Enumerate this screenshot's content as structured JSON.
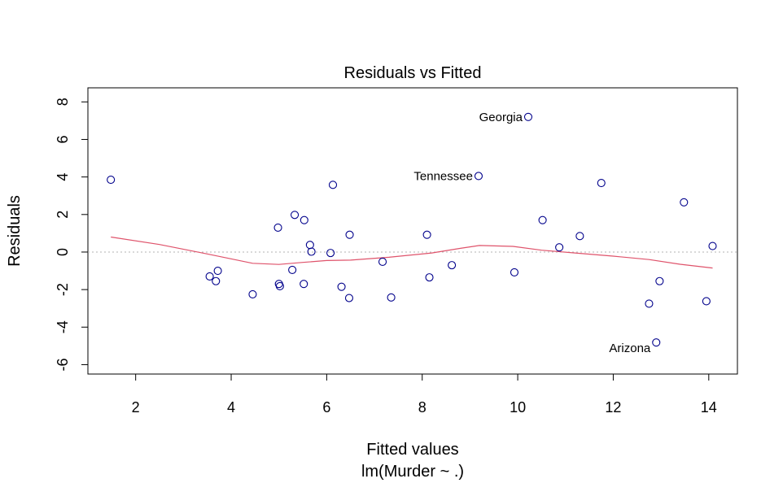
{
  "chart_data": {
    "type": "scatter",
    "title": "Residuals vs Fitted",
    "xlabel": "Fitted values",
    "subtitle": "lm(Murder ~ .)",
    "ylabel": "Residuals",
    "xlim": [
      1.0,
      14.6
    ],
    "ylim": [
      -6.5,
      8.75
    ],
    "xticks": [
      2,
      4,
      6,
      8,
      10,
      12,
      14
    ],
    "yticks": [
      -6,
      -4,
      -2,
      0,
      2,
      4,
      6,
      8
    ],
    "grid": false,
    "zero_line": {
      "y": 0,
      "style": "dotted",
      "color": "#b3b3b3"
    },
    "point_color": "#00008b",
    "smooth_color": "#df536b",
    "points": [
      {
        "x": 1.48,
        "y": 3.85
      },
      {
        "x": 3.55,
        "y": -1.3
      },
      {
        "x": 3.68,
        "y": -1.55
      },
      {
        "x": 3.72,
        "y": -1.0
      },
      {
        "x": 4.45,
        "y": -2.25
      },
      {
        "x": 4.98,
        "y": 1.3
      },
      {
        "x": 5.0,
        "y": -1.7
      },
      {
        "x": 5.02,
        "y": -1.82
      },
      {
        "x": 5.28,
        "y": -0.95
      },
      {
        "x": 5.33,
        "y": 1.98
      },
      {
        "x": 5.52,
        "y": -1.7
      },
      {
        "x": 5.53,
        "y": 1.7
      },
      {
        "x": 5.65,
        "y": 0.38
      },
      {
        "x": 5.68,
        "y": 0.02
      },
      {
        "x": 6.08,
        "y": -0.05
      },
      {
        "x": 6.13,
        "y": 3.58
      },
      {
        "x": 6.31,
        "y": -1.85
      },
      {
        "x": 6.47,
        "y": -2.45
      },
      {
        "x": 6.48,
        "y": 0.92
      },
      {
        "x": 7.17,
        "y": -0.52
      },
      {
        "x": 7.35,
        "y": -2.42
      },
      {
        "x": 8.1,
        "y": 0.92
      },
      {
        "x": 8.15,
        "y": -1.35
      },
      {
        "x": 8.62,
        "y": -0.7
      },
      {
        "x": 9.18,
        "y": 4.05
      },
      {
        "x": 9.93,
        "y": -1.08
      },
      {
        "x": 10.22,
        "y": 7.2
      },
      {
        "x": 10.52,
        "y": 1.7
      },
      {
        "x": 10.87,
        "y": 0.25
      },
      {
        "x": 11.3,
        "y": 0.85
      },
      {
        "x": 11.75,
        "y": 3.68
      },
      {
        "x": 12.75,
        "y": -2.75
      },
      {
        "x": 12.9,
        "y": -4.82
      },
      {
        "x": 12.97,
        "y": -1.55
      },
      {
        "x": 13.48,
        "y": 2.65
      },
      {
        "x": 13.95,
        "y": -2.62
      },
      {
        "x": 14.08,
        "y": 0.32
      }
    ],
    "smooth": [
      {
        "x": 1.48,
        "y": 0.8
      },
      {
        "x": 2.5,
        "y": 0.4
      },
      {
        "x": 3.5,
        "y": -0.1
      },
      {
        "x": 4.45,
        "y": -0.6
      },
      {
        "x": 5.0,
        "y": -0.66
      },
      {
        "x": 5.5,
        "y": -0.55
      },
      {
        "x": 6.0,
        "y": -0.45
      },
      {
        "x": 6.5,
        "y": -0.43
      },
      {
        "x": 7.3,
        "y": -0.28
      },
      {
        "x": 8.2,
        "y": -0.05
      },
      {
        "x": 8.8,
        "y": 0.2
      },
      {
        "x": 9.2,
        "y": 0.35
      },
      {
        "x": 9.9,
        "y": 0.3
      },
      {
        "x": 10.5,
        "y": 0.1
      },
      {
        "x": 11.2,
        "y": -0.05
      },
      {
        "x": 12.0,
        "y": -0.22
      },
      {
        "x": 12.75,
        "y": -0.4
      },
      {
        "x": 13.4,
        "y": -0.65
      },
      {
        "x": 14.08,
        "y": -0.85
      }
    ],
    "annotations": [
      {
        "text": "Georgia",
        "x": 10.22,
        "y": 7.2
      },
      {
        "text": "Tennessee",
        "x": 9.18,
        "y": 4.05
      },
      {
        "text": "Arizona",
        "x": 12.9,
        "y": -4.82
      }
    ]
  }
}
